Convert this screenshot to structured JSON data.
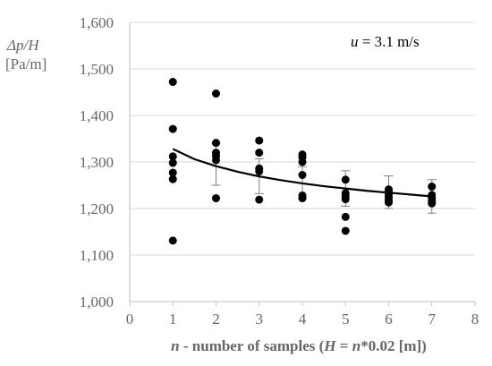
{
  "chart_data": {
    "type": "scatter",
    "ylabel_line1": "Δp/H",
    "ylabel_line2": "[Pa/m]",
    "xlabel_italic": "n",
    "xlabel_part2": " - number of samples (",
    "xlabel_italic2": "H",
    "xlabel_part3": " = ",
    "xlabel_italic3": "n",
    "xlabel_part4": "*0.02 [m])",
    "annotation_italic": "u",
    "annotation_rest": " = 3.1 m/s",
    "xlim": [
      0,
      8
    ],
    "ylim": [
      1000,
      1600
    ],
    "x_ticks": [
      0,
      1,
      2,
      3,
      4,
      5,
      6,
      7,
      8
    ],
    "y_ticks": [
      1000,
      1100,
      1200,
      1300,
      1400,
      1500,
      1600
    ],
    "y_tick_labels": [
      "1,000",
      "1,100",
      "1,200",
      "1,300",
      "1,400",
      "1,500",
      "1,600"
    ],
    "grid": "horizontal",
    "points": [
      {
        "x": 1,
        "y": 1472
      },
      {
        "x": 1,
        "y": 1371
      },
      {
        "x": 1,
        "y": 1312
      },
      {
        "x": 1,
        "y": 1298
      },
      {
        "x": 1,
        "y": 1277
      },
      {
        "x": 1,
        "y": 1263
      },
      {
        "x": 1,
        "y": 1131
      },
      {
        "x": 2,
        "y": 1447
      },
      {
        "x": 2,
        "y": 1341
      },
      {
        "x": 2,
        "y": 1320
      },
      {
        "x": 2,
        "y": 1313
      },
      {
        "x": 2,
        "y": 1304
      },
      {
        "x": 2,
        "y": 1222
      },
      {
        "x": 3,
        "y": 1346
      },
      {
        "x": 3,
        "y": 1320
      },
      {
        "x": 3,
        "y": 1286
      },
      {
        "x": 3,
        "y": 1280
      },
      {
        "x": 3,
        "y": 1219
      },
      {
        "x": 4,
        "y": 1316
      },
      {
        "x": 4,
        "y": 1310
      },
      {
        "x": 4,
        "y": 1300
      },
      {
        "x": 4,
        "y": 1272
      },
      {
        "x": 4,
        "y": 1228
      },
      {
        "x": 4,
        "y": 1222
      },
      {
        "x": 5,
        "y": 1262
      },
      {
        "x": 5,
        "y": 1233
      },
      {
        "x": 5,
        "y": 1227
      },
      {
        "x": 5,
        "y": 1220
      },
      {
        "x": 5,
        "y": 1182
      },
      {
        "x": 5,
        "y": 1152
      },
      {
        "x": 6,
        "y": 1241
      },
      {
        "x": 6,
        "y": 1236
      },
      {
        "x": 6,
        "y": 1230
      },
      {
        "x": 6,
        "y": 1224
      },
      {
        "x": 6,
        "y": 1218
      },
      {
        "x": 6,
        "y": 1213
      },
      {
        "x": 7,
        "y": 1247
      },
      {
        "x": 7,
        "y": 1229
      },
      {
        "x": 7,
        "y": 1222
      },
      {
        "x": 7,
        "y": 1216
      },
      {
        "x": 7,
        "y": 1211
      }
    ],
    "trend": {
      "x": [
        1,
        1.5,
        2,
        2.5,
        3,
        3.5,
        4,
        4.5,
        5,
        5.5,
        6,
        6.5,
        7
      ],
      "y": [
        1328,
        1306,
        1291,
        1279,
        1269,
        1261,
        1254,
        1248,
        1243,
        1238,
        1234,
        1230,
        1226
      ]
    },
    "error_bars": [
      {
        "x": 2,
        "low": 1250,
        "high": 1340
      },
      {
        "x": 3,
        "low": 1232,
        "high": 1307
      },
      {
        "x": 4,
        "low": 1222,
        "high": 1290
      },
      {
        "x": 5,
        "low": 1205,
        "high": 1281
      },
      {
        "x": 6,
        "low": 1200,
        "high": 1270
      },
      {
        "x": 7,
        "low": 1190,
        "high": 1262
      }
    ],
    "colors": {
      "points": "#000000",
      "trend": "#000000",
      "error_bars": "#7f7f7f"
    }
  }
}
